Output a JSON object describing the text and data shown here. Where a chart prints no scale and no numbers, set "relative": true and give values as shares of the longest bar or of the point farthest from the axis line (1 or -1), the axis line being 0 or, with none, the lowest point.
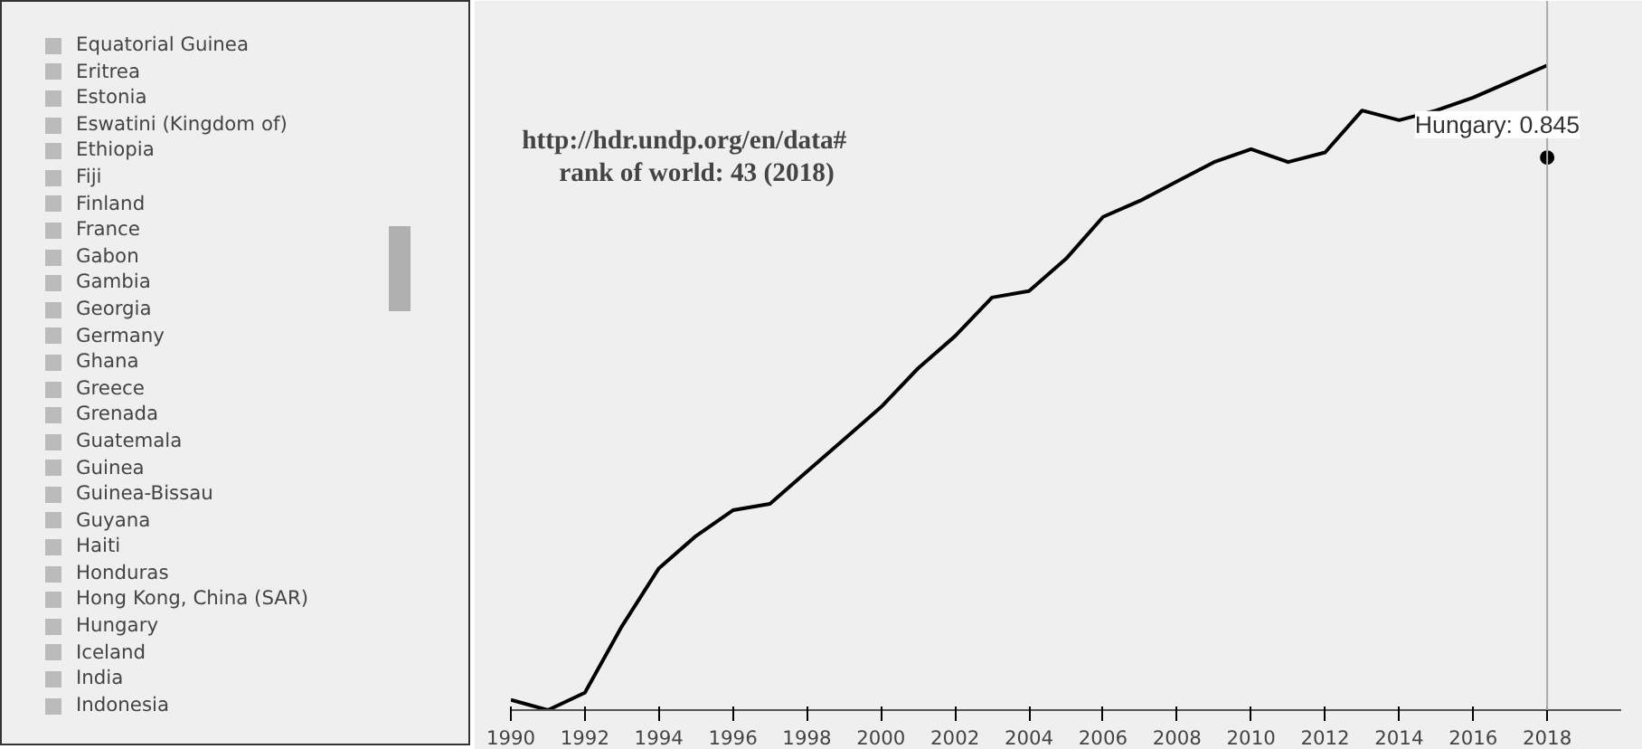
{
  "chart_data": [
    {
      "type": "other",
      "annotations": [
        "Equatorial Guinea",
        "Eritrea",
        "Estonia",
        "Eswatini (Kingdom of)",
        "Ethiopia",
        "Fiji",
        "Finland",
        "France",
        "Gabon",
        "Gambia",
        "Georgia",
        "Germany",
        "Ghana",
        "Greece",
        "Grenada",
        "Guatemala",
        "Guinea",
        "Guinea-Bissau",
        "Guyana",
        "Haiti",
        "Honduras",
        "Hong Kong, China (SAR)",
        "Hungary",
        "Iceland",
        "India",
        "Indonesia"
      ]
    },
    {
      "type": "line",
      "relative": true,
      "x": [
        1990,
        1991,
        1992,
        1993,
        1994,
        1995,
        1996,
        1997,
        1998,
        1999,
        2000,
        2001,
        2002,
        2003,
        2004,
        2005,
        2006,
        2007,
        2008,
        2009,
        2010,
        2011,
        2012,
        2013,
        2014,
        2015,
        2016,
        2017,
        2018
      ],
      "series": [
        {
          "color": "#000000",
          "values": [
            0.016,
            0,
            0.027,
            0.13,
            0.22,
            0.27,
            0.31,
            0.32,
            0.37,
            0.42,
            0.47,
            0.53,
            0.58,
            0.64,
            0.65,
            0.7,
            0.765,
            0.79,
            0.82,
            0.85,
            0.87,
            0.85,
            0.865,
            0.93,
            0.915,
            0.93,
            0.95,
            0.975,
            1.0
          ]
        }
      ],
      "xlim": [
        1990,
        2020
      ],
      "xticks": [
        1990,
        1992,
        1994,
        1996,
        1998,
        2000,
        2002,
        2004,
        2006,
        2008,
        2010,
        2012,
        2014,
        2016,
        2018
      ],
      "ref_lines": [
        {
          "axis": "x",
          "value": 2018,
          "color": "#aaaaaa"
        }
      ],
      "annotations": [
        "http://hdr.undp.org/en/data#",
        "rank of world: 43 (2018)",
        {
          "text": "Hungary: 0.845",
          "x": 2018,
          "y": 0.857
        }
      ],
      "grid": false,
      "marker": "none",
      "line_style": "solid"
    }
  ]
}
